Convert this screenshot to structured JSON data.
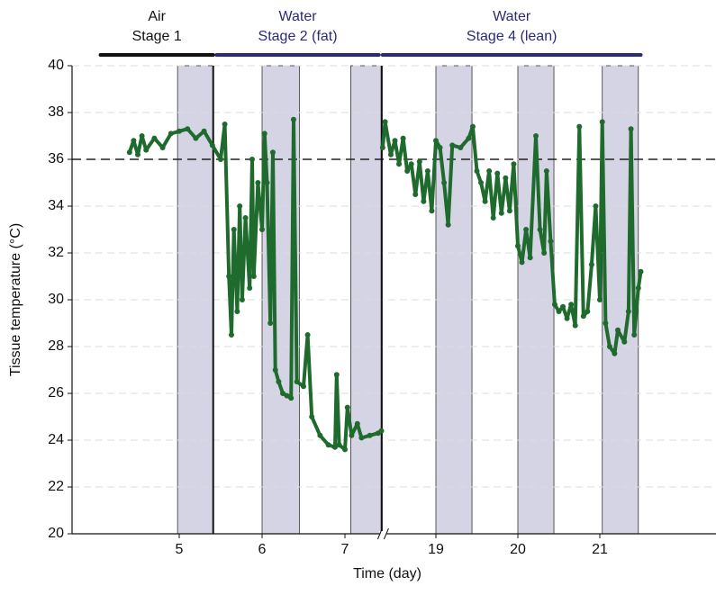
{
  "chart_data": {
    "type": "line",
    "xlabel": "Time (day)",
    "ylabel": "Tissue temperature (°C)",
    "ylim": [
      20,
      40
    ],
    "yticks": [
      20,
      22,
      24,
      26,
      28,
      30,
      32,
      34,
      36,
      38,
      40
    ],
    "xticks": [
      5,
      6,
      7,
      19,
      20,
      21
    ],
    "x_break": [
      7.45,
      18.35
    ],
    "grid": true,
    "reference_line": 36,
    "bands": [
      [
        4.98,
        5.41
      ],
      [
        6.0,
        6.45
      ],
      [
        7.07,
        7.45
      ],
      [
        19.0,
        19.44
      ],
      [
        20.0,
        20.44
      ],
      [
        21.03,
        21.47
      ]
    ],
    "band_color": "#d4d4e4",
    "stages": [
      {
        "lines": [
          "Air",
          "Stage 1"
        ],
        "span": [
          4.05,
          5.41
        ],
        "color": "#111111"
      },
      {
        "lines": [
          "Water",
          "Stage 2 (fat)"
        ],
        "span": [
          5.45,
          7.41
        ],
        "color": "#2a2a78"
      },
      {
        "lines": [
          "Water",
          "Stage 4 (lean)"
        ],
        "span": [
          18.35,
          21.5
        ],
        "color": "#2a2a78"
      }
    ],
    "series": [
      {
        "color": "#1f6b2e",
        "x": [
          4.4,
          4.45,
          4.5,
          4.55,
          4.6,
          4.7,
          4.8,
          4.9,
          5.0,
          5.1,
          5.2,
          5.3,
          5.4,
          5.5,
          5.55,
          5.6,
          5.63,
          5.66,
          5.7,
          5.73,
          5.76,
          5.8,
          5.85,
          5.88,
          5.9,
          5.95,
          6.0,
          6.03,
          6.06,
          6.1,
          6.13,
          6.16,
          6.2,
          6.25,
          6.3,
          6.35,
          6.38,
          6.42,
          6.5,
          6.55,
          6.6,
          6.7,
          6.8,
          6.88,
          6.9,
          6.93,
          7.0,
          7.03,
          7.08,
          7.15,
          7.2,
          7.3,
          7.4,
          7.44
        ],
        "values": [
          36.3,
          36.8,
          36.2,
          37.0,
          36.4,
          36.9,
          36.5,
          37.1,
          37.2,
          37.3,
          36.9,
          37.2,
          36.6,
          36.0,
          37.5,
          31,
          28.5,
          33,
          29.5,
          34,
          30,
          33.5,
          30.5,
          36,
          31,
          35,
          33,
          37.1,
          35,
          29,
          36.3,
          27,
          26.5,
          26,
          25.9,
          25.8,
          37.7,
          26.5,
          26.3,
          28.5,
          25,
          24.2,
          23.8,
          23.7,
          26.8,
          23.8,
          23.6,
          25.4,
          24.2,
          24.7,
          24.1,
          24.2,
          24.3,
          24.4
        ]
      },
      {
        "color": "#1f6b2e",
        "x": [
          18.35,
          18.38,
          18.45,
          18.5,
          18.55,
          18.6,
          18.65,
          18.7,
          18.75,
          18.8,
          18.85,
          18.9,
          18.95,
          19.0,
          19.05,
          19.1,
          19.15,
          19.2,
          19.3,
          19.4,
          19.45,
          19.5,
          19.55,
          19.6,
          19.65,
          19.7,
          19.75,
          19.8,
          19.85,
          19.9,
          19.95,
          20.0,
          20.05,
          20.1,
          20.15,
          20.22,
          20.27,
          20.32,
          20.35,
          20.4,
          20.45,
          20.5,
          20.55,
          20.6,
          20.65,
          20.7,
          20.75,
          20.8,
          20.85,
          20.9,
          20.95,
          21.0,
          21.03,
          21.07,
          21.12,
          21.18,
          21.22,
          21.3,
          21.35,
          21.38,
          21.42,
          21.47,
          21.5
        ],
        "values": [
          36.5,
          37.6,
          36.2,
          36.8,
          35.8,
          36.9,
          35.5,
          35.8,
          34.5,
          35.9,
          34.2,
          35.5,
          33.8,
          36.8,
          36.5,
          35,
          33.2,
          36.6,
          36.5,
          36.9,
          37.4,
          35.5,
          35.0,
          34.2,
          35.5,
          33.5,
          35.4,
          33.7,
          35.2,
          33.8,
          35.8,
          32.3,
          31.6,
          33,
          31.8,
          37.0,
          33,
          32,
          35.5,
          32.5,
          29.8,
          29.5,
          29.7,
          29.2,
          29.8,
          28.9,
          37.4,
          29.3,
          29.5,
          31.5,
          34,
          30,
          37.6,
          29,
          28,
          27.7,
          28.7,
          28.2,
          29.5,
          37.3,
          28.5,
          30.5,
          31.2
        ]
      }
    ]
  }
}
